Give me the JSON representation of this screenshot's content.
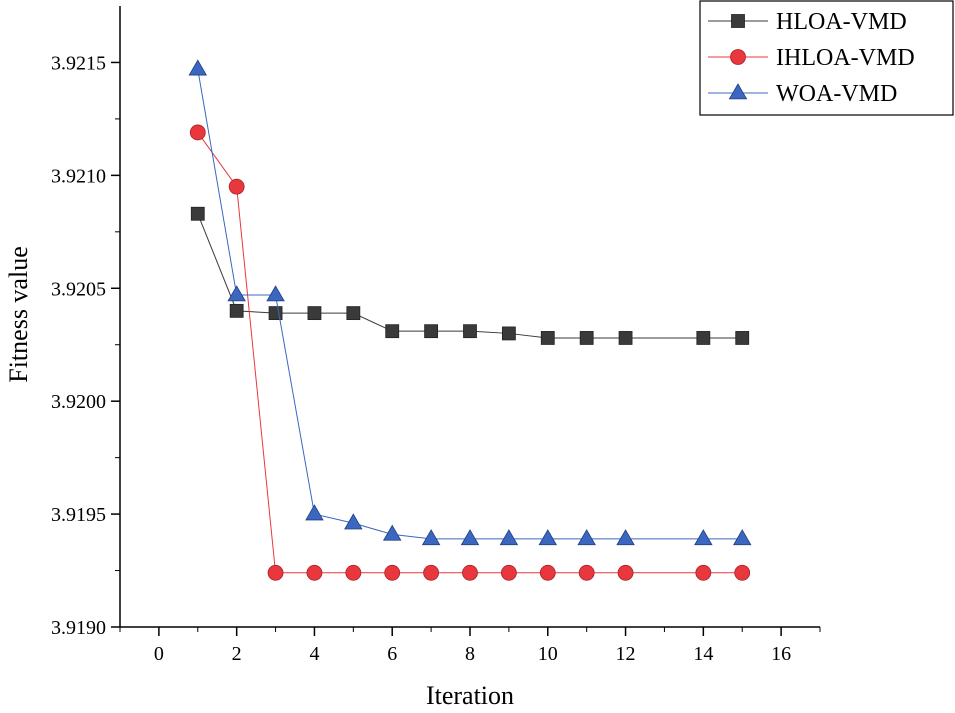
{
  "chart_data": {
    "type": "line",
    "title": "",
    "xlabel": "Iteration",
    "ylabel": "Fitness value",
    "xlim": [
      -1,
      17
    ],
    "ylim": [
      3.919,
      3.92175
    ],
    "xticks": [
      0,
      2,
      4,
      6,
      8,
      10,
      12,
      14,
      16
    ],
    "yticks": [
      3.919,
      3.9195,
      3.92,
      3.9205,
      3.921,
      3.9215
    ],
    "ytick_labels": [
      "3.9190",
      "3.9195",
      "3.9200",
      "3.9205",
      "3.9210",
      "3.9215"
    ],
    "grid": false,
    "legend_position": "top-right",
    "series": [
      {
        "name": "HLOA-VMD",
        "color": "#3a3a3a",
        "marker": "square",
        "x": [
          1,
          2,
          3,
          4,
          5,
          6,
          7,
          8,
          9,
          10,
          11,
          12,
          14,
          15
        ],
        "y": [
          3.92083,
          3.9204,
          3.92039,
          3.92039,
          3.92039,
          3.92031,
          3.92031,
          3.92031,
          3.9203,
          3.92028,
          3.92028,
          3.92028,
          3.92028,
          3.92028
        ]
      },
      {
        "name": "IHLOA-VMD",
        "color": "#e8383d",
        "marker": "circle",
        "x": [
          1,
          2,
          3,
          4,
          5,
          6,
          7,
          8,
          9,
          10,
          11,
          12,
          14,
          15
        ],
        "y": [
          3.92119,
          3.92095,
          3.91924,
          3.91924,
          3.91924,
          3.91924,
          3.91924,
          3.91924,
          3.91924,
          3.91924,
          3.91924,
          3.91924,
          3.91924,
          3.91924
        ]
      },
      {
        "name": "WOA-VMD",
        "color": "#3b67c0",
        "marker": "triangle",
        "x": [
          1,
          2,
          3,
          4,
          5,
          6,
          7,
          8,
          9,
          10,
          11,
          12,
          14,
          15
        ],
        "y": [
          3.92147,
          3.92047,
          3.92047,
          3.9195,
          3.91946,
          3.91941,
          3.91939,
          3.91939,
          3.91939,
          3.91939,
          3.91939,
          3.91939,
          3.91939,
          3.91939
        ]
      }
    ]
  }
}
